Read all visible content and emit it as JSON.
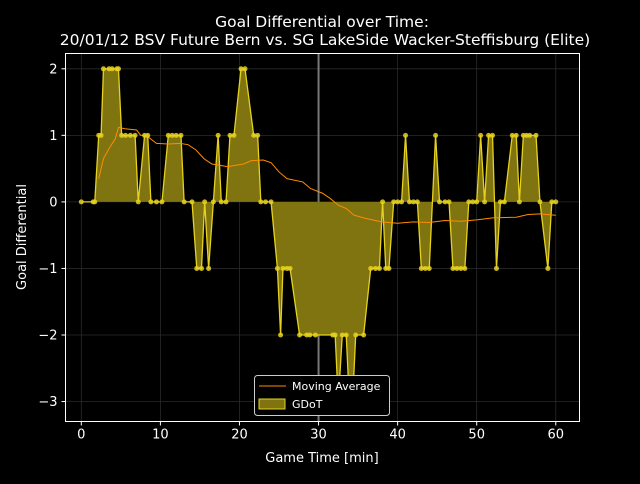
{
  "chart_data": {
    "type": "area",
    "title_line1": "Goal Differential over Time:",
    "title_line2": "20/01/12 BSV Future Bern  vs.  SG LakeSide Wacker-Steffisburg (Elite)",
    "xlabel": "Game Time [min]",
    "ylabel": "Goal Differential",
    "xlim": [
      -2,
      63
    ],
    "ylim": [
      -3.3,
      2.23
    ],
    "x_ticks": [
      0,
      10,
      20,
      30,
      40,
      50,
      60
    ],
    "y_ticks": [
      -3,
      -2,
      -1,
      0,
      1,
      2
    ],
    "y_tick_labels": [
      "−3",
      "−2",
      "−1",
      "0",
      "1",
      "2"
    ],
    "halftime_line_x": 30,
    "grid": true,
    "legend_position": "lower-center",
    "series": [
      {
        "name": "GDoT",
        "color": "#e6d21e",
        "points": [
          [
            0,
            0
          ],
          [
            1.5,
            0
          ],
          [
            1.7,
            0
          ],
          [
            2.2,
            1
          ],
          [
            2.5,
            1
          ],
          [
            2.8,
            2
          ],
          [
            3.5,
            2
          ],
          [
            3.9,
            2
          ],
          [
            4.5,
            2
          ],
          [
            4.7,
            2
          ],
          [
            5.1,
            1
          ],
          [
            5.6,
            1
          ],
          [
            6.2,
            1
          ],
          [
            6.8,
            1
          ],
          [
            7.2,
            0
          ],
          [
            8.0,
            1
          ],
          [
            8.4,
            1
          ],
          [
            8.8,
            0
          ],
          [
            9.5,
            0
          ],
          [
            10.2,
            0
          ],
          [
            11.0,
            1
          ],
          [
            11.5,
            1
          ],
          [
            12.0,
            1
          ],
          [
            12.6,
            1
          ],
          [
            13.0,
            0
          ],
          [
            14.0,
            0
          ],
          [
            14.6,
            -1
          ],
          [
            15.2,
            -1
          ],
          [
            15.6,
            0
          ],
          [
            16.1,
            -1
          ],
          [
            16.7,
            0
          ],
          [
            17.3,
            1
          ],
          [
            17.7,
            0
          ],
          [
            18.3,
            0
          ],
          [
            18.8,
            1
          ],
          [
            19.3,
            1
          ],
          [
            20.2,
            2
          ],
          [
            20.7,
            2
          ],
          [
            21.8,
            1
          ],
          [
            22.3,
            1
          ],
          [
            22.7,
            0
          ],
          [
            23.3,
            0
          ],
          [
            24.0,
            0
          ],
          [
            24.8,
            -1
          ],
          [
            25.2,
            -2
          ],
          [
            25.5,
            -1
          ],
          [
            26.0,
            -1
          ],
          [
            26.4,
            -1
          ],
          [
            27.6,
            -2
          ],
          [
            28.5,
            -2
          ],
          [
            28.9,
            -2
          ],
          [
            29.6,
            -2
          ],
          [
            31.8,
            -2
          ],
          [
            32.1,
            -2
          ],
          [
            32.5,
            -3
          ],
          [
            33.0,
            -2
          ],
          [
            33.5,
            -2
          ],
          [
            33.9,
            -3
          ],
          [
            34.3,
            -3
          ],
          [
            34.7,
            -2
          ],
          [
            35.7,
            -2
          ],
          [
            36.6,
            -1
          ],
          [
            37.2,
            -1
          ],
          [
            37.7,
            -1
          ],
          [
            38.1,
            0
          ],
          [
            38.5,
            -1
          ],
          [
            38.9,
            -1
          ],
          [
            39.5,
            0
          ],
          [
            40.0,
            0
          ],
          [
            40.5,
            0
          ],
          [
            41.0,
            1
          ],
          [
            41.5,
            0
          ],
          [
            42.0,
            0
          ],
          [
            42.5,
            0
          ],
          [
            43.0,
            -1
          ],
          [
            43.5,
            -1
          ],
          [
            44.0,
            -1
          ],
          [
            44.8,
            1
          ],
          [
            45.3,
            0
          ],
          [
            46.0,
            0
          ],
          [
            46.5,
            0
          ],
          [
            47.0,
            -1
          ],
          [
            47.5,
            -1
          ],
          [
            48.0,
            -1
          ],
          [
            48.5,
            -1
          ],
          [
            49.0,
            0
          ],
          [
            49.5,
            0
          ],
          [
            50.0,
            0
          ],
          [
            50.5,
            1
          ],
          [
            51.0,
            0
          ],
          [
            51.5,
            1
          ],
          [
            52.0,
            1
          ],
          [
            52.5,
            -1
          ],
          [
            53.0,
            0
          ],
          [
            53.5,
            0
          ],
          [
            54.5,
            1
          ],
          [
            55.0,
            1
          ],
          [
            55.4,
            0
          ],
          [
            55.9,
            1
          ],
          [
            56.3,
            1
          ],
          [
            56.7,
            1
          ],
          [
            57.5,
            1
          ],
          [
            58.0,
            0
          ],
          [
            59.0,
            -1
          ],
          [
            59.5,
            0
          ],
          [
            60.0,
            0
          ]
        ]
      },
      {
        "name": "Moving Average",
        "color": "#ff8c00",
        "points": [
          [
            2.2,
            0.35
          ],
          [
            2.8,
            0.65
          ],
          [
            3.5,
            0.8
          ],
          [
            4.3,
            0.95
          ],
          [
            4.7,
            1.12
          ],
          [
            5.5,
            1.1
          ],
          [
            7.0,
            1.08
          ],
          [
            7.5,
            1.0
          ],
          [
            8.2,
            1.0
          ],
          [
            9.5,
            0.88
          ],
          [
            11.0,
            0.87
          ],
          [
            12.5,
            0.88
          ],
          [
            13.5,
            0.86
          ],
          [
            14.5,
            0.78
          ],
          [
            15.5,
            0.65
          ],
          [
            16.5,
            0.57
          ],
          [
            18.5,
            0.53
          ],
          [
            20.5,
            0.57
          ],
          [
            21.5,
            0.62
          ],
          [
            23.0,
            0.63
          ],
          [
            24.0,
            0.59
          ],
          [
            25.0,
            0.45
          ],
          [
            26.0,
            0.35
          ],
          [
            28.0,
            0.3
          ],
          [
            29.0,
            0.2
          ],
          [
            30.5,
            0.13
          ],
          [
            31.5,
            0.05
          ],
          [
            32.5,
            -0.05
          ],
          [
            33.5,
            -0.1
          ],
          [
            34.5,
            -0.2
          ],
          [
            36.0,
            -0.25
          ],
          [
            38.0,
            -0.3
          ],
          [
            40.0,
            -0.32
          ],
          [
            42.0,
            -0.3
          ],
          [
            44.0,
            -0.31
          ],
          [
            46.0,
            -0.28
          ],
          [
            48.0,
            -0.29
          ],
          [
            50.0,
            -0.27
          ],
          [
            52.0,
            -0.24
          ],
          [
            55.0,
            -0.23
          ],
          [
            56.5,
            -0.19
          ],
          [
            58.0,
            -0.18
          ],
          [
            60.0,
            -0.2
          ]
        ]
      }
    ]
  }
}
